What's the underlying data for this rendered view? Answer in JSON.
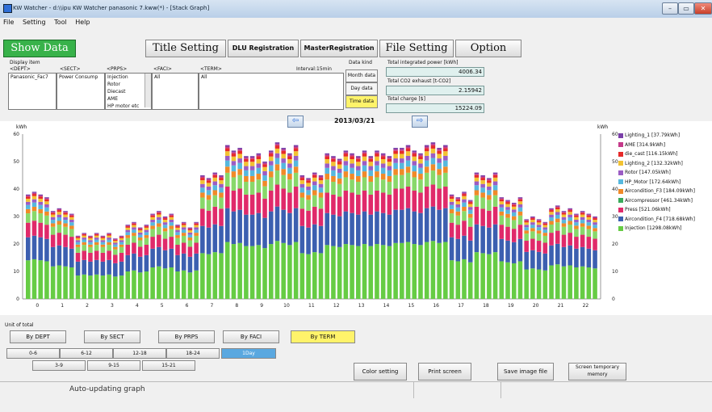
{
  "window": {
    "title": "KW Watcher - d:\\\\ipu KW Watcher panasonic 7.kww(*) - [Stack Graph]",
    "controls": [
      "–",
      "▭",
      "✕"
    ]
  },
  "menu": [
    "File",
    "Setting",
    "Tool",
    "Help"
  ],
  "toolbar": {
    "show_data": "Show Data",
    "title_setting": "Title Setting",
    "dlu_registration": "DLU Registration",
    "master_registration": "MasterRegistration",
    "file_setting": "File Setting",
    "option": "Option"
  },
  "display_item": {
    "label": "Display item",
    "headers": {
      "dept": "<DEPT>",
      "sect": "<SECT>",
      "prps": "<PRPS>",
      "faci": "<FACI>",
      "term": "<TERM>"
    },
    "dept": "Panasonic_Fac7",
    "sect": "Power Consump",
    "prps": [
      "Injection",
      "Rotor",
      "Diecast",
      "AME",
      "HP motor etc"
    ],
    "faci": "All",
    "term": "All",
    "interval": "Interval:15min"
  },
  "data_kind": {
    "label": "Data kind",
    "month": "Month data",
    "day": "Day data",
    "time": "Time data"
  },
  "totals": {
    "power_label": "Total integrated power [kWh]",
    "power_value": "4006.34",
    "co2_label": "Total CO2 exhaust [t-CO2]",
    "co2_value": "2.15942",
    "charge_label": "Total charge [$]",
    "charge_value": "15224.09"
  },
  "nav": {
    "prev": "⇦",
    "next": "⇨",
    "date": "2013/03/21"
  },
  "chart_data": {
    "type": "bar",
    "stacked": true,
    "ylabel_left": "kWh",
    "ylabel_right": "kWh",
    "ylim": [
      0,
      60
    ],
    "yticks": [
      0,
      10,
      20,
      30,
      40,
      50,
      60
    ],
    "xticks": [
      "0",
      "1",
      "2",
      "3",
      "4",
      "5",
      "6",
      "7",
      "8",
      "9",
      "10",
      "11",
      "12",
      "13",
      "14",
      "15",
      "16",
      "17",
      "18",
      "19",
      "20",
      "21",
      "22"
    ],
    "bars_per_hour": 4,
    "legend_position": "right",
    "legend": [
      {
        "name": "Lighting_1 [37.79kWh]",
        "color": "#7a3fa8"
      },
      {
        "name": "AME [314.9kWh]",
        "color": "#c43a8a"
      },
      {
        "name": "die_cast [116.15kWh]",
        "color": "#e62a2a"
      },
      {
        "name": "Lighting_2 [132.32kWh]",
        "color": "#f2c232"
      },
      {
        "name": "Rotor [147.05kWh]",
        "color": "#9b5cc4"
      },
      {
        "name": "HP_Motor [172.64kWh]",
        "color": "#56b8de"
      },
      {
        "name": "Aircondition_F3 [184.09kWh]",
        "color": "#f08a28"
      },
      {
        "name": "Aircompressor [461.34kWh]",
        "color": "#3aaa5a"
      },
      {
        "name": "Press [521.06kWh]",
        "color": "#e02a6a"
      },
      {
        "name": "Aircondition_F4 [718.68kWh]",
        "color": "#3c5fb0"
      },
      {
        "name": "Injection [1298.08kWh]",
        "color": "#66cc44"
      }
    ],
    "stack_order": [
      "Injection",
      "Aircondition_F4",
      "Press",
      "Aircompressor",
      "Aircondition_F3",
      "HP_Motor",
      "Rotor",
      "Lighting_2",
      "die_cast",
      "AME",
      "Lighting_1"
    ],
    "stack_colors": [
      "#66cc44",
      "#3c5fb0",
      "#e02a6a",
      "#88d86a",
      "#f08a28",
      "#56b8de",
      "#9b5cc4",
      "#f2c232",
      "#e62a2a",
      "#c43a8a",
      "#7a3fa8"
    ],
    "hourly_total": [
      38,
      32,
      23,
      23,
      27,
      31,
      27,
      45,
      54,
      52,
      55,
      45,
      52,
      53,
      53,
      54,
      56,
      37,
      45,
      36,
      29,
      33,
      31
    ],
    "totals": [
      38,
      39,
      38,
      37,
      32,
      33,
      32,
      31,
      23,
      24,
      23,
      24,
      23,
      24,
      22,
      23,
      27,
      28,
      26,
      27,
      31,
      32,
      30,
      31,
      27,
      28,
      26,
      28,
      45,
      44,
      46,
      45,
      56,
      54,
      55,
      52,
      52,
      53,
      50,
      54,
      57,
      55,
      53,
      56,
      45,
      44,
      46,
      45,
      53,
      52,
      51,
      54,
      53,
      52,
      54,
      52,
      54,
      53,
      52,
      55,
      55,
      56,
      54,
      53,
      56,
      57,
      55,
      56,
      38,
      37,
      39,
      36,
      46,
      45,
      44,
      46,
      37,
      36,
      35,
      37,
      29,
      30,
      29,
      28,
      33,
      34,
      32,
      33,
      31,
      32,
      31,
      30
    ],
    "shares": [
      0.37,
      0.22,
      0.14,
      0.09,
      0.04,
      0.04,
      0.03,
      0.03,
      0.02,
      0.01,
      0.01
    ]
  },
  "unit_total": {
    "label": "Unit of total",
    "buttons": [
      "By DEPT",
      "By SECT",
      "By PRPS",
      "By FACI",
      "By TERM"
    ],
    "active": "By TERM"
  },
  "hours": {
    "row1": [
      "0-6",
      "6-12",
      "12-18",
      "18-24",
      "1Day"
    ],
    "row2": [
      "3-9",
      "9-15",
      "15-21"
    ],
    "active": "1Day"
  },
  "footer_buttons": {
    "color": "Color setting",
    "print": "Print screen",
    "save": "Save image file",
    "temp": "Screen temporary memory"
  },
  "status": {
    "auto": "Auto-updating graph"
  }
}
